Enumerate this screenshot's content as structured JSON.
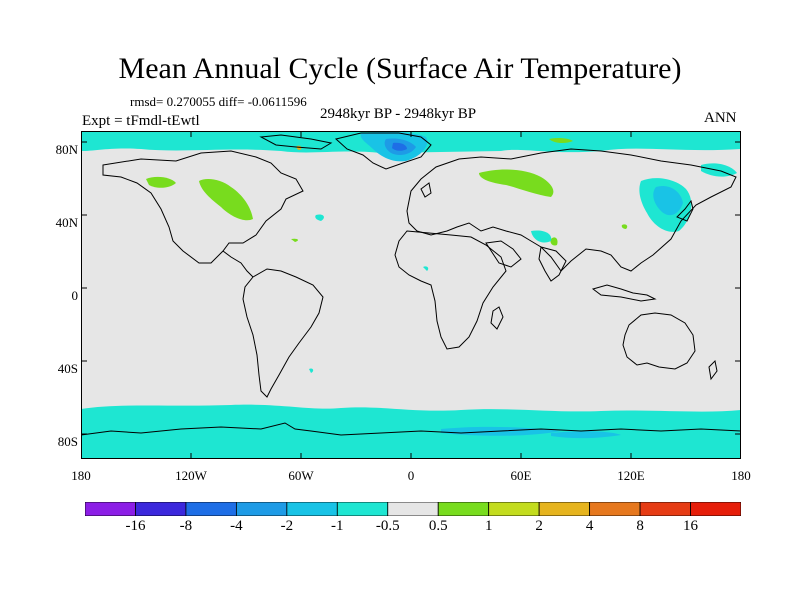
{
  "title": "Mean Annual Cycle (Surface Air Temperature)",
  "stats": "rmsd= 0.270055 diff= -0.0611596",
  "experiment": "Expt = tFmdl-tEwtl",
  "period": "2948kyr BP - 2948kyr BP",
  "season": "ANN",
  "map": {
    "projection": "cylindrical equidistant",
    "lat_labels": [
      "80N",
      "40N",
      "0",
      "40S",
      "80S"
    ],
    "lon_labels": [
      "180",
      "120W",
      "60W",
      "0",
      "60E",
      "120E",
      "180"
    ],
    "background_color": "#e6e6e6"
  },
  "colorbar": {
    "tick_labels": [
      "-16",
      "-8",
      "-4",
      "-2",
      "-1",
      "-0.5",
      "0.5",
      "1",
      "2",
      "4",
      "8",
      "16"
    ],
    "colors": [
      "#8c1ee6",
      "#3c28dc",
      "#1e6ee6",
      "#1e9be6",
      "#19c3e6",
      "#1ee6d2",
      "#e6e6e6",
      "#78dc1e",
      "#c3dc1e",
      "#e6b41e",
      "#e6781e",
      "#e63c14",
      "#e61e0a"
    ]
  }
}
